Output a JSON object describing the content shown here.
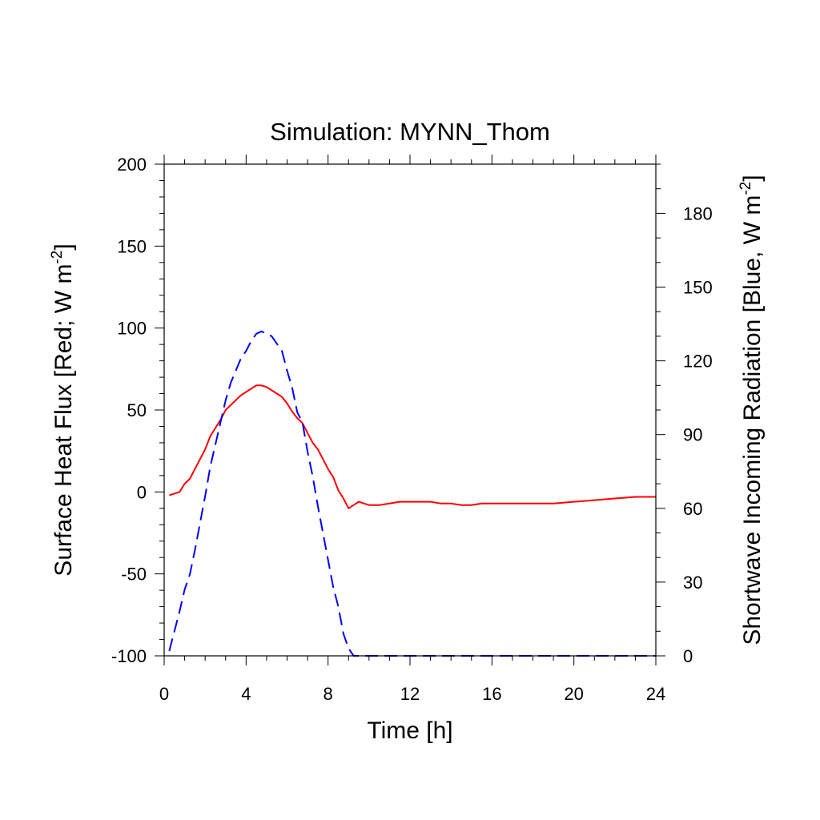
{
  "chart_data": {
    "type": "line",
    "title": "Simulation: MYNN_Thom",
    "xlabel": "Time [h]",
    "ylabel_left": {
      "main": "Surface Heat Flux [Red; W m",
      "sup": "-2",
      "end": "]"
    },
    "ylabel_right": {
      "main": "Shortwave Incoming Radiation [Blue, W m",
      "sup": "-2",
      "end": "]"
    },
    "xlim": [
      0,
      24
    ],
    "ylim_left": [
      -100,
      200
    ],
    "ylim_right": [
      0,
      200
    ],
    "x_ticks": [
      "0",
      "4",
      "8",
      "12",
      "16",
      "20",
      "24"
    ],
    "y_left_ticks": [
      "-100",
      "-50",
      "0",
      "50",
      "100",
      "150",
      "200"
    ],
    "y_right_ticks": [
      "0",
      "30",
      "60",
      "90",
      "120",
      "150",
      "180"
    ],
    "grid": false,
    "legend": "none",
    "series": [
      {
        "axis": "left",
        "color": "#ff0000",
        "dash": "solid",
        "x": [
          0.25,
          0.5,
          0.75,
          1.0,
          1.25,
          1.5,
          1.75,
          2.0,
          2.25,
          2.5,
          2.75,
          3.0,
          3.25,
          3.5,
          3.75,
          4.0,
          4.25,
          4.5,
          4.75,
          5.0,
          5.25,
          5.5,
          5.75,
          6.0,
          6.25,
          6.5,
          6.75,
          7.0,
          7.25,
          7.5,
          7.75,
          8.0,
          8.25,
          8.5,
          8.75,
          9.0,
          9.25,
          9.5,
          9.75,
          10.0,
          10.5,
          11.0,
          11.5,
          12.0,
          12.5,
          13.0,
          13.5,
          14.0,
          14.5,
          15.0,
          15.5,
          16.0,
          17.0,
          18.0,
          19.0,
          20.0,
          21.0,
          22.0,
          23.0,
          23.5,
          24.0
        ],
        "y": [
          -2,
          -1,
          0,
          5,
          8,
          14,
          20,
          26,
          34,
          39,
          44,
          50,
          53,
          56,
          59,
          61,
          63,
          65,
          65,
          64,
          62,
          60,
          58,
          54,
          49,
          45,
          42,
          36,
          30,
          26,
          20,
          14,
          9,
          1,
          -4,
          -10,
          -8,
          -6,
          -7,
          -8,
          -8,
          -7,
          -6,
          -6,
          -6,
          -6,
          -7,
          -7,
          -8,
          -8,
          -7,
          -7,
          -7,
          -7,
          -7,
          -6,
          -5,
          -4,
          -3,
          -3,
          -3
        ]
      },
      {
        "axis": "right",
        "color": "#0000ff",
        "dash": "dashed",
        "x": [
          0.25,
          0.5,
          0.75,
          1.0,
          1.25,
          1.5,
          1.75,
          2.0,
          2.25,
          2.5,
          2.75,
          3.0,
          3.25,
          3.5,
          3.75,
          4.0,
          4.25,
          4.5,
          4.75,
          5.0,
          5.25,
          5.5,
          5.75,
          6.0,
          6.25,
          6.5,
          6.75,
          7.0,
          7.25,
          7.5,
          7.75,
          8.0,
          8.25,
          8.5,
          8.75,
          9.0,
          9.25,
          9.5,
          10.0,
          12.0,
          16.0,
          20.0,
          24.0
        ],
        "y": [
          2,
          10,
          18,
          27,
          33,
          43,
          54,
          65,
          77,
          86,
          95,
          104,
          111,
          116,
          121,
          124,
          128,
          131,
          132,
          131,
          130,
          127,
          124,
          116,
          109,
          99,
          95,
          83,
          73,
          61,
          50,
          39,
          28,
          20,
          9,
          3,
          0,
          0,
          0,
          0,
          0,
          0,
          0
        ]
      }
    ]
  }
}
